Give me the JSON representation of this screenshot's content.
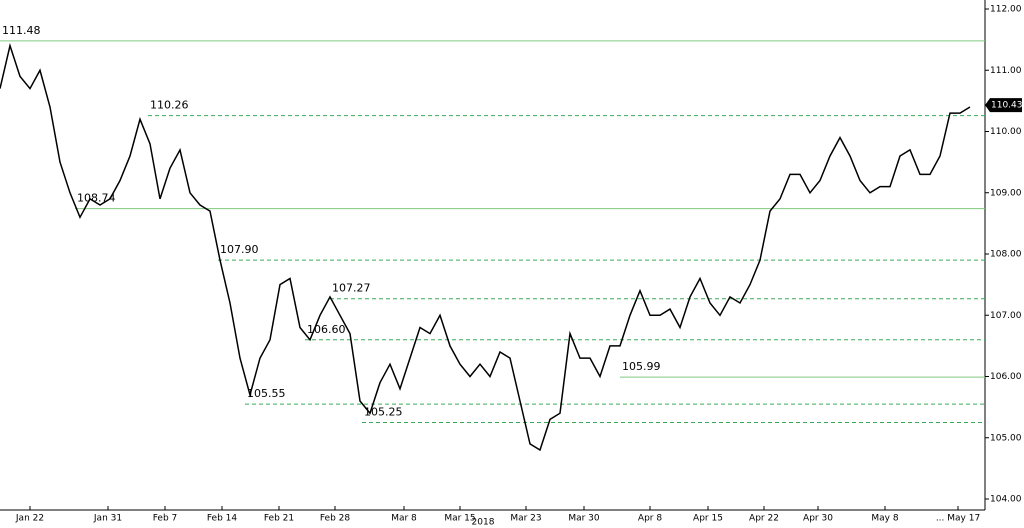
{
  "chart_data": {
    "type": "line",
    "x_label": "2018",
    "series": [
      {
        "color": "#000000",
        "values": [
          110.7,
          111.4,
          110.9,
          110.7,
          111.0,
          110.4,
          109.5,
          109.0,
          108.6,
          108.9,
          108.8,
          108.9,
          109.2,
          109.6,
          110.2,
          109.8,
          108.9,
          109.4,
          109.7,
          109.0,
          108.8,
          108.7,
          107.9,
          107.2,
          106.3,
          105.7,
          106.3,
          106.6,
          107.5,
          107.6,
          106.8,
          106.6,
          107.0,
          107.3,
          107.0,
          106.7,
          105.6,
          105.4,
          105.9,
          106.2,
          105.8,
          106.3,
          106.8,
          106.7,
          107.0,
          106.5,
          106.2,
          106.0,
          106.2,
          106.0,
          106.4,
          106.3,
          105.6,
          104.9,
          104.8,
          105.3,
          105.4,
          106.7,
          106.3,
          106.3,
          106.0,
          106.5,
          106.5,
          107.0,
          107.4,
          107.0,
          107.0,
          107.1,
          106.8,
          107.3,
          107.6,
          107.2,
          107.0,
          107.3,
          107.2,
          107.5,
          107.9,
          108.7,
          108.9,
          109.3,
          109.3,
          109.0,
          109.2,
          109.6,
          109.9,
          109.6,
          109.2,
          109.0,
          109.1,
          109.1,
          109.6,
          109.7,
          109.3,
          109.3,
          109.6,
          110.3,
          110.3,
          110.4
        ]
      }
    ],
    "levels": [
      {
        "value": 111.48,
        "x": 0,
        "style": "solid",
        "color": "#7fc97f"
      },
      {
        "value": 110.26,
        "x": 14.8,
        "style": "dashed",
        "color": "#3aaa5a"
      },
      {
        "value": 108.74,
        "x": 7.5,
        "style": "solid",
        "color": "#7fc97f"
      },
      {
        "value": 107.9,
        "label": "107.90",
        "x": 21.8,
        "style": "dashed",
        "color": "#3aaa5a"
      },
      {
        "value": 107.27,
        "x": 33,
        "style": "dashed",
        "color": "#3aaa5a"
      },
      {
        "value": 106.6,
        "label": "106.60",
        "x": 30.5,
        "style": "dashed",
        "color": "#3aaa5a"
      },
      {
        "value": 105.99,
        "x": 62,
        "style": "solid",
        "color": "#7fc97f"
      },
      {
        "value": 105.55,
        "x": 24.5,
        "style": "dashed",
        "color": "#3aaa5a"
      },
      {
        "value": 105.25,
        "x": 36.2,
        "style": "dashed",
        "color": "#3aaa5a"
      }
    ],
    "last": 110.43,
    "xlim": [
      0,
      98.5
    ],
    "ylim": [
      104,
      112
    ],
    "xticks": [
      {
        "value": 3,
        "label": "Jan 22"
      },
      {
        "value": 10.8,
        "label": "Jan 31"
      },
      {
        "value": 16.5,
        "label": "Feb 7"
      },
      {
        "value": 22.2,
        "label": "Feb 14"
      },
      {
        "value": 27.9,
        "label": "Feb 21"
      },
      {
        "value": 33.5,
        "label": "Feb 28"
      },
      {
        "value": 40.4,
        "label": "Mar 8"
      },
      {
        "value": 46,
        "label": "Mar 15"
      },
      {
        "value": 52.6,
        "label": "Mar 23"
      },
      {
        "value": 58.4,
        "label": "Mar 30"
      },
      {
        "value": 65,
        "label": "Apr 8"
      },
      {
        "value": 70.8,
        "label": "Apr 15"
      },
      {
        "value": 76.4,
        "label": "Apr 22"
      },
      {
        "value": 81.8,
        "label": "Apr 30"
      },
      {
        "value": 88.5,
        "label": "May 8"
      },
      {
        "value": 95.8,
        "label": "... May 17"
      }
    ],
    "yticks": [
      {
        "value": 104,
        "label": "104.00"
      },
      {
        "value": 105,
        "label": "105.00"
      },
      {
        "value": 106,
        "label": "106.00"
      },
      {
        "value": 107,
        "label": "107.00"
      },
      {
        "value": 108,
        "label": "108.00"
      },
      {
        "value": 109,
        "label": "109.00"
      },
      {
        "value": 110,
        "label": "110.00"
      },
      {
        "value": 111,
        "label": "111.00"
      },
      {
        "value": 112,
        "label": "112.00"
      }
    ]
  }
}
